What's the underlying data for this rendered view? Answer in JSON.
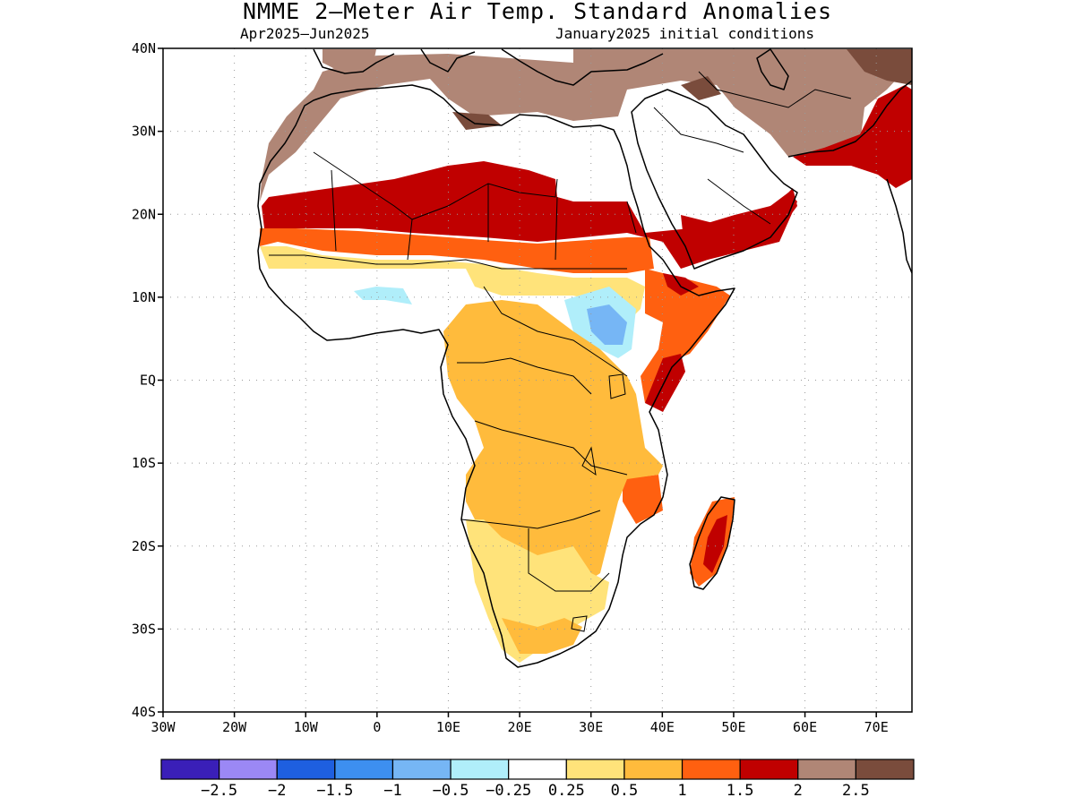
{
  "title": "NMME 2–Meter Air Temp. Standard Anomalies",
  "subtitle_left": "Apr2025–Jun2025",
  "subtitle_right": "January2025 initial conditions",
  "map": {
    "lon_range": [
      -30,
      75
    ],
    "lat_range": [
      -40,
      40
    ],
    "lat_ticks": [
      {
        "value": 40,
        "label": "40N"
      },
      {
        "value": 30,
        "label": "30N"
      },
      {
        "value": 20,
        "label": "20N"
      },
      {
        "value": 10,
        "label": "10N"
      },
      {
        "value": 0,
        "label": "EQ"
      },
      {
        "value": -10,
        "label": "10S"
      },
      {
        "value": -20,
        "label": "20S"
      },
      {
        "value": -30,
        "label": "30S"
      },
      {
        "value": -40,
        "label": "40S"
      }
    ],
    "lon_ticks": [
      {
        "value": -30,
        "label": "30W"
      },
      {
        "value": -20,
        "label": "20W"
      },
      {
        "value": -10,
        "label": "10W"
      },
      {
        "value": 0,
        "label": "0"
      },
      {
        "value": 10,
        "label": "10E"
      },
      {
        "value": 20,
        "label": "20E"
      },
      {
        "value": 30,
        "label": "30E"
      },
      {
        "value": 40,
        "label": "40E"
      },
      {
        "value": 50,
        "label": "50E"
      },
      {
        "value": 60,
        "label": "60E"
      },
      {
        "value": 70,
        "label": "70E"
      }
    ],
    "gridlines": "dotted"
  },
  "colorbar": {
    "colors": [
      "#3a1fb8",
      "#9b88f5",
      "#1e5fe0",
      "#3d8ff0",
      "#76b6f5",
      "#b0eefa",
      "#ffffff",
      "#ffe37a",
      "#ffbb3c",
      "#ff6010",
      "#c00000",
      "#b08676",
      "#7a4c3c"
    ],
    "labels": [
      "−2.5",
      "−2",
      "−1.5",
      "−1",
      "−0.5",
      "−0.25",
      "0.25",
      "0.5",
      "1",
      "1.5",
      "2",
      "2.5"
    ]
  },
  "colors": {
    "lt_neg": "#76b6f5",
    "lt_neg2": "#b0eefa",
    "pos1": "#ffe37a",
    "pos2": "#ffbb3c",
    "pos3": "#ff6010",
    "pos4": "#c00000",
    "pos5": "#b08676",
    "pos6": "#7a4c3c"
  }
}
